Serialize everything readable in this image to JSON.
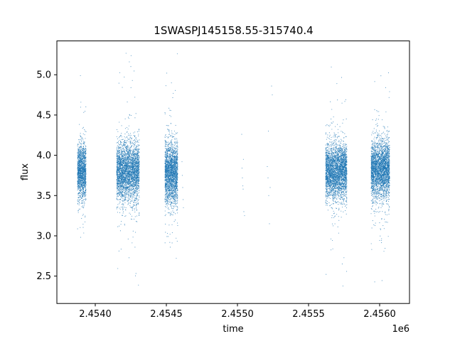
{
  "chart_data": {
    "type": "scatter",
    "title": "1SWASPJ145158.55-315740.4",
    "xlabel": "time",
    "ylabel": "flux",
    "x_offset_label": "1e6",
    "xlim": [
      2453730,
      2456210
    ],
    "ylim": [
      2.16,
      5.42
    ],
    "x_ticks": [
      2454000,
      2454500,
      2455000,
      2455500,
      2456000
    ],
    "x_tick_labels": [
      "2.4540",
      "2.4545",
      "2.4550",
      "2.4555",
      "2.4560"
    ],
    "y_ticks": [
      2.5,
      3.0,
      3.5,
      4.0,
      4.5,
      5.0
    ],
    "y_tick_labels": [
      "2.5",
      "3.0",
      "3.5",
      "4.0",
      "4.5",
      "5.0"
    ],
    "grid": false,
    "marker_color": "#1f77b4",
    "series": [
      {
        "clusters": [
          {
            "x_range": [
              2453875,
              2453935
            ],
            "center": 3.8,
            "spread": 0.17,
            "min": 2.37,
            "max": 5.25,
            "points": 1500
          },
          {
            "x_range": [
              2454150,
              2454310
            ],
            "center": 3.8,
            "spread": 0.18,
            "min": 2.31,
            "max": 5.27,
            "points": 3200
          },
          {
            "x_range": [
              2454490,
              2454580
            ],
            "center": 3.78,
            "spread": 0.19,
            "min": 2.31,
            "max": 5.29,
            "points": 2200
          },
          {
            "x_range": [
              2455620,
              2455770
            ],
            "center": 3.8,
            "spread": 0.17,
            "min": 2.32,
            "max": 5.26,
            "points": 3200
          },
          {
            "x_range": [
              2455940,
              2456070
            ],
            "center": 3.82,
            "spread": 0.18,
            "min": 2.33,
            "max": 5.16,
            "points": 3000
          }
        ],
        "sparse_points": [
          [
            2454610,
            3.92
          ],
          [
            2454612,
            3.75
          ],
          [
            2454615,
            3.6
          ],
          [
            2454618,
            3.45
          ],
          [
            2454620,
            3.35
          ],
          [
            2455032,
            3.84
          ],
          [
            2455035,
            3.72
          ],
          [
            2455038,
            3.62
          ],
          [
            2455040,
            3.58
          ],
          [
            2455045,
            3.3
          ],
          [
            2455050,
            3.25
          ],
          [
            2455030,
            4.26
          ],
          [
            2455042,
            3.95
          ],
          [
            2455210,
            3.86
          ],
          [
            2455215,
            3.72
          ],
          [
            2455220,
            3.5
          ],
          [
            2455225,
            3.15
          ],
          [
            2455218,
            4.3
          ],
          [
            2455230,
            3.6
          ],
          [
            2455240,
            4.86
          ],
          [
            2455245,
            4.75
          ]
        ]
      }
    ]
  }
}
